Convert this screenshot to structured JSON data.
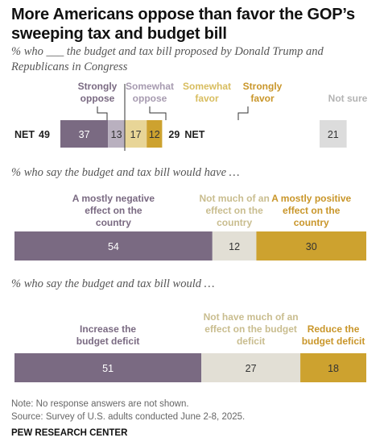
{
  "title": "More Americans oppose than favor the GOP’s sweeping tax and budget bill",
  "subtitle1": "% who ___ the budget and tax bill proposed by Donald Trump and Republicans in Congress",
  "subtitle2": "% who say the budget and tax bill would have …",
  "subtitle3": "% who say the budget and tax bill would …",
  "note": "Note: No response answers are not shown.",
  "source": "Source: Survey of U.S. adults conducted June 2-8, 2025.",
  "brand": "PEW RESEARCH CENTER",
  "colors": {
    "dark_purple": "#7a6a82",
    "light_purple": "#b9b0bf",
    "light_gold": "#e8d597",
    "dark_gold": "#cda22f",
    "gray": "#dcdcdc",
    "neutral": "#e2dfd5"
  },
  "chart_data": [
    {
      "type": "bar",
      "orientation": "horizontal-stacked",
      "categories": [
        "Strongly oppose",
        "Somewhat oppose",
        "Somewhat favor",
        "Strongly favor",
        "Not sure"
      ],
      "values": [
        37,
        13,
        17,
        12,
        21
      ],
      "net_oppose_label": "NET",
      "net_oppose": 49,
      "net_favor": 29,
      "net_favor_label": "NET"
    },
    {
      "type": "bar",
      "orientation": "horizontal-stacked",
      "categories": [
        "A mostly negative effect on the country",
        "Not much of an effect on the country",
        "A mostly positive effect on the country"
      ],
      "values": [
        54,
        12,
        30
      ]
    },
    {
      "type": "bar",
      "orientation": "horizontal-stacked",
      "categories": [
        "Increase the budget deficit",
        "Not have much of an effect on the budget deficit",
        "Reduce the budget deficit"
      ],
      "values": [
        51,
        27,
        18
      ]
    }
  ]
}
